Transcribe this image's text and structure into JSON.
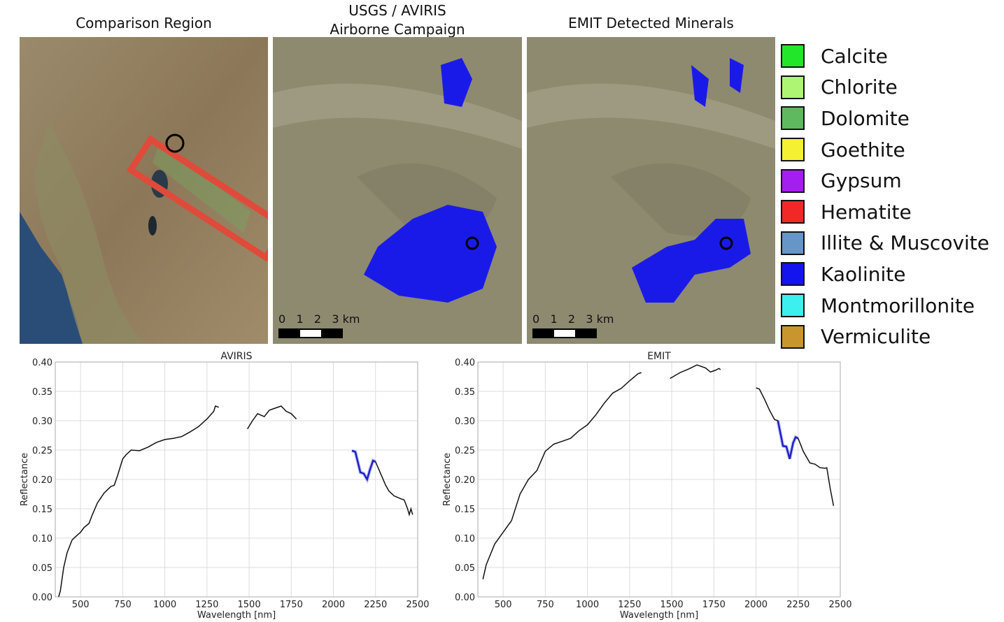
{
  "panels": {
    "comparison_title": "Comparison Region",
    "aviris_title_line1": "USGS / AVIRIS",
    "aviris_title_line2": "Airborne Campaign",
    "emit_title": "EMIT Detected Minerals",
    "scale_labels": [
      "0",
      "1",
      "2",
      "3 km"
    ]
  },
  "legend": [
    {
      "label": "Calcite",
      "color": "#22e62a"
    },
    {
      "label": "Chlorite",
      "color": "#aef574"
    },
    {
      "label": "Dolomite",
      "color": "#5fb95f"
    },
    {
      "label": "Goethite",
      "color": "#f5f032"
    },
    {
      "label": "Gypsum",
      "color": "#a41ef0"
    },
    {
      "label": "Hematite",
      "color": "#f02828"
    },
    {
      "label": "Illite & Muscovite",
      "color": "#6496c8"
    },
    {
      "label": "Kaolinite",
      "color": "#1414f0"
    },
    {
      "label": "Montmorillonite",
      "color": "#3cf0f0"
    },
    {
      "label": "Vermiculite",
      "color": "#c8962d"
    }
  ],
  "chart_data": [
    {
      "type": "line",
      "title": "AVIRIS",
      "xlabel": "Wavelength [nm]",
      "ylabel": "Reflectance",
      "xlim": [
        350,
        2500
      ],
      "ylim": [
        0,
        0.4
      ],
      "grid": true,
      "xticks": [
        "500",
        "750",
        "1000",
        "1250",
        "1500",
        "1750",
        "2000",
        "2250",
        "2500"
      ],
      "yticks": [
        "0.00",
        "0.05",
        "0.10",
        "0.15",
        "0.20",
        "0.25",
        "0.30",
        "0.35",
        "0.40"
      ],
      "highlight_color": "#2020c0",
      "highlight_range": [
        2110,
        2250
      ],
      "segments": [
        [
          [
            370,
            0
          ],
          [
            380,
            0.01
          ],
          [
            400,
            0.05
          ],
          [
            420,
            0.075
          ],
          [
            450,
            0.097
          ],
          [
            480,
            0.105
          ],
          [
            500,
            0.11
          ],
          [
            520,
            0.118
          ],
          [
            550,
            0.125
          ],
          [
            570,
            0.14
          ],
          [
            600,
            0.16
          ],
          [
            640,
            0.177
          ],
          [
            680,
            0.188
          ],
          [
            700,
            0.19
          ],
          [
            720,
            0.207
          ],
          [
            750,
            0.235
          ],
          [
            770,
            0.242
          ],
          [
            800,
            0.25
          ],
          [
            850,
            0.249
          ],
          [
            900,
            0.255
          ],
          [
            950,
            0.263
          ],
          [
            1000,
            0.268
          ],
          [
            1050,
            0.27
          ],
          [
            1100,
            0.273
          ],
          [
            1150,
            0.281
          ],
          [
            1200,
            0.29
          ],
          [
            1250,
            0.303
          ],
          [
            1290,
            0.316
          ],
          [
            1300,
            0.325
          ],
          [
            1320,
            0.323
          ]
        ],
        [
          [
            1490,
            0.286
          ],
          [
            1520,
            0.3
          ],
          [
            1550,
            0.312
          ],
          [
            1590,
            0.307
          ],
          [
            1620,
            0.318
          ],
          [
            1650,
            0.321
          ],
          [
            1690,
            0.325
          ],
          [
            1720,
            0.316
          ],
          [
            1750,
            0.312
          ],
          [
            1780,
            0.303
          ]
        ],
        [
          [
            2110,
            0.249
          ],
          [
            2130,
            0.247
          ],
          [
            2160,
            0.212
          ],
          [
            2180,
            0.21
          ],
          [
            2200,
            0.2
          ],
          [
            2215,
            0.215
          ],
          [
            2235,
            0.232
          ],
          [
            2250,
            0.23
          ],
          [
            2280,
            0.21
          ],
          [
            2310,
            0.19
          ],
          [
            2330,
            0.18
          ],
          [
            2360,
            0.172
          ],
          [
            2400,
            0.167
          ],
          [
            2420,
            0.165
          ],
          [
            2440,
            0.15
          ],
          [
            2450,
            0.14
          ],
          [
            2460,
            0.15
          ],
          [
            2470,
            0.14
          ]
        ]
      ]
    },
    {
      "type": "line",
      "title": "EMIT",
      "xlabel": "Wavelength [nm]",
      "ylabel": "Reflectance",
      "xlim": [
        350,
        2500
      ],
      "ylim": [
        0,
        0.4
      ],
      "grid": true,
      "xticks": [
        "500",
        "750",
        "1000",
        "1250",
        "1500",
        "1750",
        "2000",
        "2250",
        "2500"
      ],
      "yticks": [
        "0.00",
        "0.05",
        "0.10",
        "0.15",
        "0.20",
        "0.25",
        "0.30",
        "0.35",
        "0.40"
      ],
      "highlight_color": "#2020c0",
      "highlight_range": [
        2130,
        2250
      ],
      "segments": [
        [
          [
            380,
            0.03
          ],
          [
            400,
            0.055
          ],
          [
            450,
            0.09
          ],
          [
            500,
            0.11
          ],
          [
            550,
            0.13
          ],
          [
            600,
            0.175
          ],
          [
            650,
            0.2
          ],
          [
            700,
            0.215
          ],
          [
            750,
            0.248
          ],
          [
            800,
            0.26
          ],
          [
            850,
            0.265
          ],
          [
            900,
            0.27
          ],
          [
            950,
            0.283
          ],
          [
            1000,
            0.293
          ],
          [
            1050,
            0.31
          ],
          [
            1100,
            0.33
          ],
          [
            1150,
            0.347
          ],
          [
            1200,
            0.355
          ],
          [
            1250,
            0.368
          ],
          [
            1300,
            0.38
          ],
          [
            1320,
            0.382
          ]
        ],
        [
          [
            1490,
            0.372
          ],
          [
            1550,
            0.382
          ],
          [
            1600,
            0.388
          ],
          [
            1650,
            0.395
          ],
          [
            1700,
            0.39
          ],
          [
            1730,
            0.383
          ],
          [
            1760,
            0.386
          ],
          [
            1780,
            0.389
          ],
          [
            1790,
            0.387
          ]
        ],
        [
          [
            2000,
            0.356
          ],
          [
            2020,
            0.354
          ],
          [
            2050,
            0.337
          ],
          [
            2080,
            0.318
          ],
          [
            2110,
            0.302
          ],
          [
            2130,
            0.3
          ],
          [
            2160,
            0.257
          ],
          [
            2180,
            0.256
          ],
          [
            2200,
            0.235
          ],
          [
            2220,
            0.262
          ],
          [
            2235,
            0.272
          ],
          [
            2250,
            0.27
          ],
          [
            2280,
            0.248
          ],
          [
            2320,
            0.228
          ],
          [
            2350,
            0.226
          ],
          [
            2380,
            0.22
          ],
          [
            2410,
            0.219
          ],
          [
            2420,
            0.22
          ],
          [
            2440,
            0.185
          ],
          [
            2460,
            0.155
          ]
        ]
      ]
    }
  ]
}
